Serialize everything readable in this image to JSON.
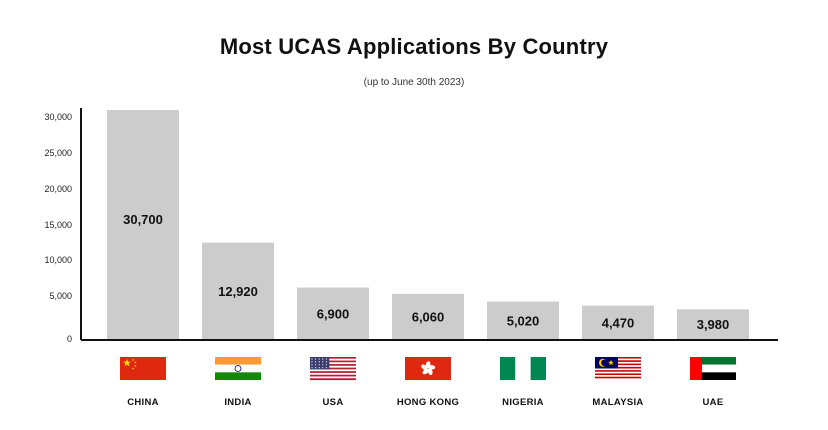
{
  "title": "Most UCAS Applications By Country",
  "subtitle": "(up to June 30th 2023)",
  "colors": {
    "bar": "#cccccc",
    "axis": "#111111",
    "text": "#111111"
  },
  "chart_data": {
    "type": "bar",
    "title": "Most UCAS Applications By Country",
    "subtitle": "(up to June 30th 2023)",
    "categories": [
      "CHINA",
      "INDIA",
      "USA",
      "HONG KONG",
      "NIGERIA",
      "MALAYSIA",
      "UAE"
    ],
    "values": [
      30700,
      12920,
      6900,
      6060,
      5020,
      4470,
      3980
    ],
    "value_labels": [
      "30,700",
      "12,920",
      "6,900",
      "6,060",
      "5,020",
      "4,470",
      "3,980"
    ],
    "flag_icons": [
      "china-flag-icon",
      "india-flag-icon",
      "usa-flag-icon",
      "hong-kong-flag-icon",
      "nigeria-flag-icon",
      "malaysia-flag-icon",
      "uae-flag-icon"
    ],
    "yticks": [
      0,
      5000,
      10000,
      15000,
      20000,
      25000,
      30000
    ],
    "ytick_labels": [
      "0",
      "5,000",
      "10,000",
      "15,000",
      "20,000",
      "25,000",
      "30,000"
    ],
    "ylim": [
      0,
      30700
    ],
    "xlabel": "",
    "ylabel": "",
    "grid": false,
    "legend": "none"
  }
}
